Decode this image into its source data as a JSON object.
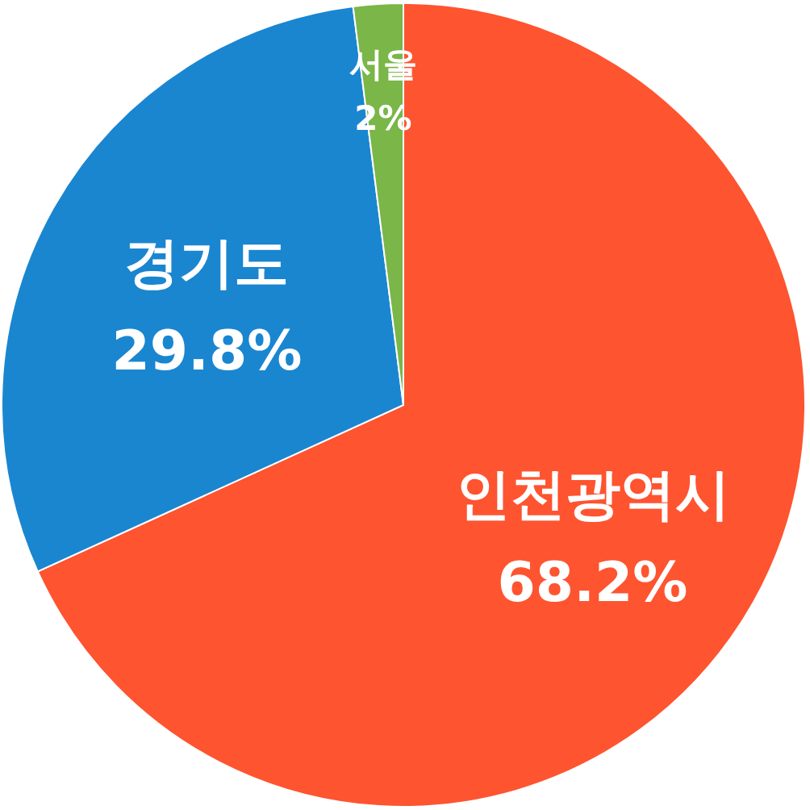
{
  "chart_data": {
    "type": "pie",
    "categories": [
      "인천광역시",
      "경기도",
      "서울"
    ],
    "values": [
      68.2,
      29.8,
      2
    ],
    "colors": [
      "#fe5430",
      "#1a86d0",
      "#7ab648"
    ],
    "value_labels": [
      "68.2%",
      "29.8%",
      "2%"
    ]
  }
}
